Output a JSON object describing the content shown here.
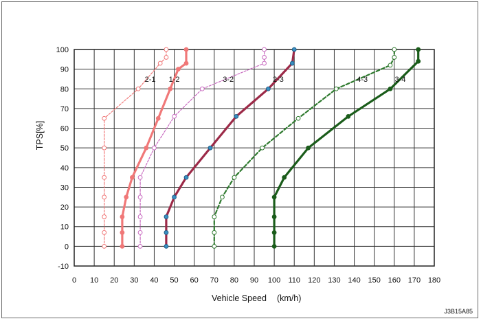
{
  "chart_data": {
    "type": "line",
    "xlabel": "Vehicle Speed",
    "xunit": "(km/h)",
    "ylabel": "TPS[%]",
    "xlim": [
      0,
      180
    ],
    "ylim": [
      -10,
      100
    ],
    "xticks": [
      0,
      10,
      20,
      30,
      40,
      50,
      60,
      70,
      80,
      90,
      100,
      110,
      120,
      130,
      140,
      150,
      160,
      170,
      180
    ],
    "yticks": [
      -10,
      0,
      10,
      20,
      30,
      40,
      50,
      60,
      70,
      80,
      90,
      100
    ],
    "grid": true,
    "series": [
      {
        "name": "1-2",
        "color": "#f07878",
        "style": "solid",
        "weight": "thick",
        "marker": "dot",
        "points": [
          [
            24,
            0
          ],
          [
            24,
            7
          ],
          [
            24,
            15
          ],
          [
            26,
            25
          ],
          [
            29,
            35
          ],
          [
            36,
            50
          ],
          [
            42,
            65
          ],
          [
            48,
            80
          ],
          [
            52,
            90
          ],
          [
            56,
            93
          ],
          [
            56,
            100
          ]
        ]
      },
      {
        "name": "2-1",
        "color": "#f07878",
        "style": "dashed",
        "weight": "thin",
        "marker": "hollow",
        "points": [
          [
            15,
            0
          ],
          [
            15,
            7
          ],
          [
            15,
            15
          ],
          [
            15,
            25
          ],
          [
            15,
            35
          ],
          [
            15,
            50
          ],
          [
            15,
            65
          ],
          [
            32,
            80
          ],
          [
            43,
            93
          ],
          [
            46,
            96
          ],
          [
            46,
            100
          ]
        ]
      },
      {
        "name": "2-3",
        "color": "#9c2a48",
        "style": "solid",
        "weight": "thick",
        "marker": "dot-blue",
        "points": [
          [
            46,
            0
          ],
          [
            46,
            7
          ],
          [
            46,
            15
          ],
          [
            50,
            25
          ],
          [
            56,
            35
          ],
          [
            68,
            50
          ],
          [
            81,
            66
          ],
          [
            97,
            80
          ],
          [
            109,
            93
          ],
          [
            110,
            100
          ]
        ]
      },
      {
        "name": "3-2",
        "color": "#c86ac0",
        "style": "dashed",
        "weight": "thin",
        "marker": "hollow",
        "points": [
          [
            33,
            0
          ],
          [
            33,
            7
          ],
          [
            33,
            15
          ],
          [
            33,
            25
          ],
          [
            33,
            35
          ],
          [
            40,
            50
          ],
          [
            50,
            66
          ],
          [
            64,
            80
          ],
          [
            95,
            93
          ],
          [
            95,
            96
          ],
          [
            95,
            100
          ]
        ]
      },
      {
        "name": "3-4",
        "color": "#1a5c1a",
        "style": "solid",
        "weight": "thick",
        "marker": "dot",
        "points": [
          [
            100,
            0
          ],
          [
            100,
            7
          ],
          [
            100,
            15
          ],
          [
            100,
            25
          ],
          [
            105,
            35
          ],
          [
            117,
            50
          ],
          [
            137,
            66
          ],
          [
            158,
            80
          ],
          [
            172,
            94
          ],
          [
            172,
            100
          ]
        ]
      },
      {
        "name": "4-3",
        "color": "#2f7a2f",
        "style": "dashed",
        "weight": "thick",
        "marker": "hollow",
        "points": [
          [
            70,
            0
          ],
          [
            70,
            7
          ],
          [
            70,
            15
          ],
          [
            74,
            25
          ],
          [
            80,
            35
          ],
          [
            94,
            50
          ],
          [
            112,
            65
          ],
          [
            131,
            80
          ],
          [
            158,
            92
          ],
          [
            160,
            96
          ],
          [
            160,
            100
          ]
        ]
      }
    ],
    "series_labels": [
      {
        "text": "2-1",
        "x": 38,
        "y": 85
      },
      {
        "text": "1-2",
        "x": 50,
        "y": 85
      },
      {
        "text": "3-2",
        "x": 77,
        "y": 85
      },
      {
        "text": "2-3",
        "x": 102,
        "y": 85
      },
      {
        "text": "4-3",
        "x": 144,
        "y": 85
      },
      {
        "text": "3-4",
        "x": 163,
        "y": 85
      }
    ],
    "code": "J3B15A85"
  }
}
